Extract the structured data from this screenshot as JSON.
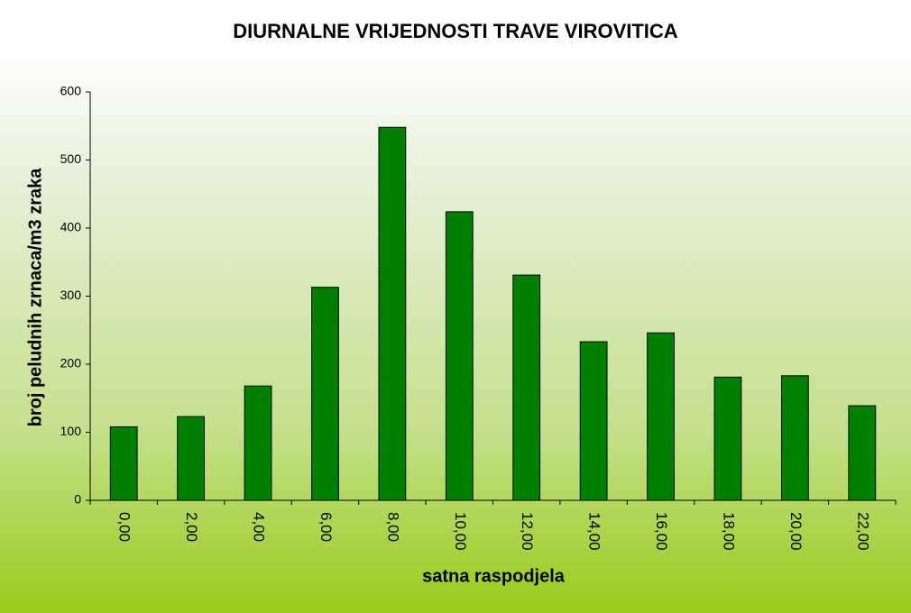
{
  "chart_data": {
    "type": "bar",
    "title": "DIURNALNE VRIJEDNOSTI TRAVE VIROVITICA",
    "x_label": "satna raspodjela",
    "y_label": "broj peludnih zrnaca/m3 zraka",
    "categories": [
      "0,00",
      "2,00",
      "4,00",
      "6,00",
      "8,00",
      "10,00",
      "12,00",
      "14,00",
      "16,00",
      "18,00",
      "20,00",
      "22,00"
    ],
    "values": [
      108,
      123,
      168,
      313,
      548,
      424,
      331,
      233,
      246,
      181,
      183,
      139
    ],
    "color": "#008000",
    "ylim": [
      0,
      600
    ],
    "yticks": [
      0,
      100,
      200,
      300,
      400,
      500,
      600
    ],
    "grid": false
  }
}
